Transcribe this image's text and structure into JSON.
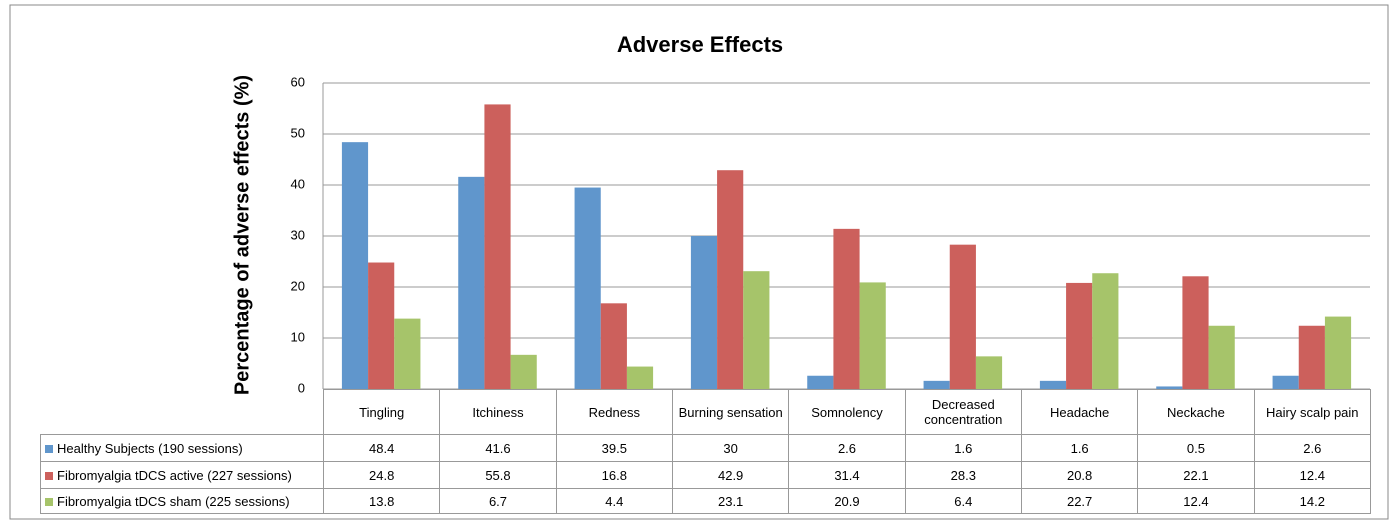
{
  "chart_data": {
    "type": "bar",
    "title": "Adverse Effects",
    "y_label": "Percentage of adverse effects (%)",
    "categories": [
      "Tingling",
      "Itchiness",
      "Redness",
      "Burning sensation",
      "Somnolency",
      "Decreased concentration",
      "Headache",
      "Neckache",
      "Hairy scalp pain"
    ],
    "series": [
      {
        "name": "Healthy Subjects (190 sessions)",
        "color": "#6096cc",
        "values": [
          48.4,
          41.6,
          39.5,
          30,
          2.6,
          1.6,
          1.6,
          0.5,
          2.6
        ]
      },
      {
        "name": "Fibromyalgia tDCS active (227 sessions)",
        "color": "#cc605c",
        "values": [
          24.8,
          55.8,
          16.8,
          42.9,
          31.4,
          28.3,
          20.8,
          22.1,
          12.4
        ]
      },
      {
        "name": "Fibromyalgia tDCS sham (225 sessions)",
        "color": "#a6c46a",
        "values": [
          13.8,
          6.7,
          4.4,
          23.1,
          20.9,
          6.4,
          22.7,
          12.4,
          14.2
        ]
      }
    ],
    "ylim": [
      0,
      60
    ],
    "yticks": [
      0,
      10,
      20,
      30,
      40,
      50,
      60
    ],
    "grid": true,
    "data_table": true
  }
}
